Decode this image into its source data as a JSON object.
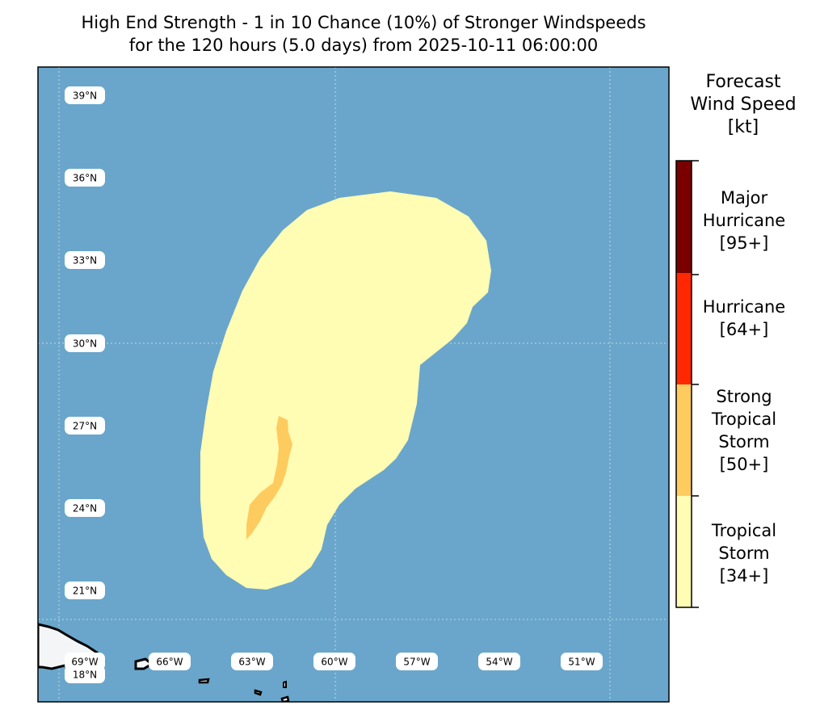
{
  "title": {
    "line1": "High End Strength - 1 in 10 Chance (10%) of Stronger Windspeeds",
    "line2": "for the 120 hours (5.0 days) from 2025-10-11 06:00:00"
  },
  "map": {
    "ocean_color": "#6aa6cb",
    "land_color": "#f4f5f7",
    "lat_labels": [
      "39°N",
      "36°N",
      "33°N",
      "30°N",
      "27°N",
      "24°N",
      "21°N",
      "18°N"
    ],
    "lon_labels": [
      "69°W",
      "66°W",
      "63°W",
      "60°W",
      "57°W",
      "54°W",
      "51°W"
    ],
    "gridlines": true
  },
  "colorbar": {
    "title": "Forecast\nWind Speed\n[kt]",
    "categories": [
      {
        "label": "Major\nHurricane\n[95+]",
        "color": "#7a0000"
      },
      {
        "label": "Hurricane\n[64+]",
        "color": "#ff2800"
      },
      {
        "label": "Strong\nTropical\nStorm\n[50+]",
        "color": "#fecb5f"
      },
      {
        "label": "Tropical\nStorm\n[34+]",
        "color": "#fffcb3"
      }
    ]
  },
  "wind_field": {
    "tropical_storm_color": "#fffcb3",
    "strong_tropical_storm_color": "#fecb5f"
  }
}
